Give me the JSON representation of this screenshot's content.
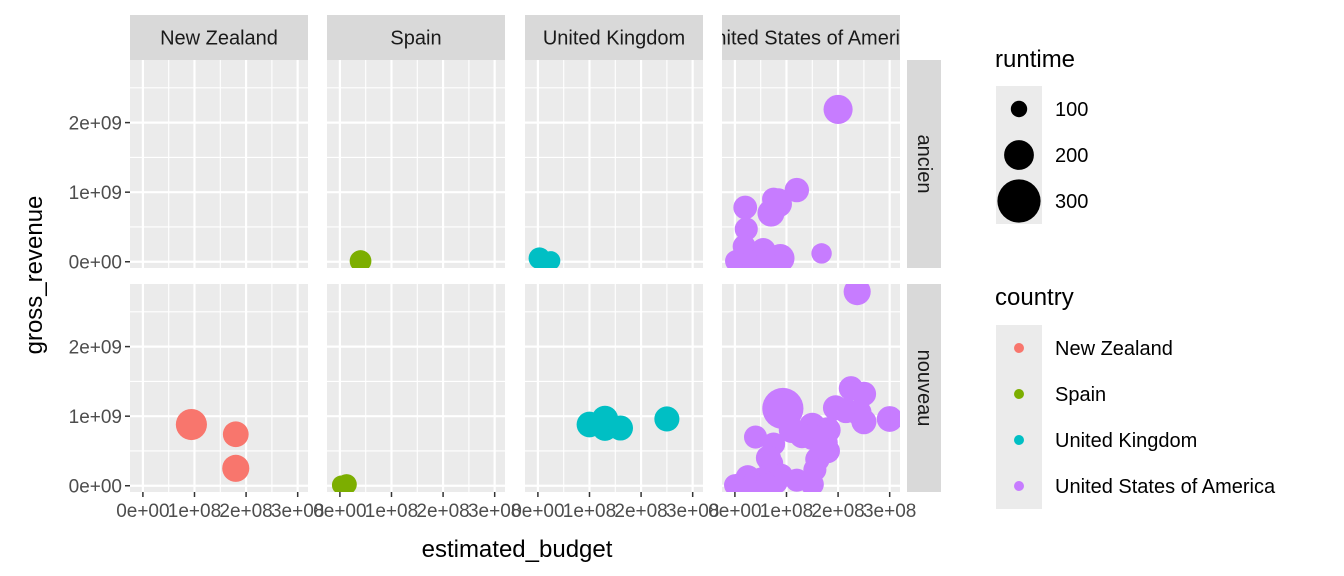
{
  "chart_data": {
    "type": "scatter",
    "facet_cols": [
      "New Zealand",
      "Spain",
      "United Kingdom",
      "United States of America"
    ],
    "facet_rows": [
      "ancien",
      "nouveau"
    ],
    "xlabel": "estimated_budget",
    "ylabel": "gross_revenue",
    "xlim": [
      -25000000.0,
      320000000.0
    ],
    "ylim": [
      -90000000.0,
      2900000000.0
    ],
    "x_ticks": [
      0,
      100000000,
      200000000,
      300000000
    ],
    "x_tick_labels": [
      "0e+00",
      "1e+08",
      "2e+08",
      "3e+08"
    ],
    "y_ticks": [
      0,
      1000000000,
      2000000000
    ],
    "y_tick_labels": [
      "0e+00",
      "1e+09",
      "2e+09"
    ],
    "grid": true,
    "legend_position": "right",
    "legend_size": {
      "title": "runtime",
      "entries": [
        {
          "label": "100",
          "value": 100
        },
        {
          "label": "200",
          "value": 200
        },
        {
          "label": "300",
          "value": 300
        }
      ]
    },
    "legend_color": {
      "title": "country",
      "entries": [
        {
          "label": "New Zealand",
          "color": "#F8766D"
        },
        {
          "label": "Spain",
          "color": "#7CAE00"
        },
        {
          "label": "United Kingdom",
          "color": "#00BFC4"
        },
        {
          "label": "United States of America",
          "color": "#C77CFF"
        }
      ]
    },
    "points": [
      {
        "country": "Spain",
        "era": "ancien",
        "x": 40000000,
        "y": 10000000,
        "runtime": 140
      },
      {
        "country": "United Kingdom",
        "era": "ancien",
        "x": 3000000,
        "y": 50000000,
        "runtime": 140
      },
      {
        "country": "United Kingdom",
        "era": "ancien",
        "x": 25000000,
        "y": 15000000,
        "runtime": 120
      },
      {
        "country": "United States of America",
        "era": "ancien",
        "x": 200000000,
        "y": 2190000000,
        "runtime": 195
      },
      {
        "country": "United States of America",
        "era": "ancien",
        "x": 120000000,
        "y": 1030000000,
        "runtime": 160
      },
      {
        "country": "United States of America",
        "era": "ancien",
        "x": 75000000,
        "y": 900000000,
        "runtime": 150
      },
      {
        "country": "United States of America",
        "era": "ancien",
        "x": 85000000,
        "y": 900000000,
        "runtime": 140
      },
      {
        "country": "United States of America",
        "era": "ancien",
        "x": 85000000,
        "y": 830000000,
        "runtime": 175
      },
      {
        "country": "United States of America",
        "era": "ancien",
        "x": 70000000,
        "y": 700000000,
        "runtime": 180
      },
      {
        "country": "United States of America",
        "era": "ancien",
        "x": 20000000,
        "y": 780000000,
        "runtime": 155
      },
      {
        "country": "United States of America",
        "era": "ancien",
        "x": 22000000,
        "y": 470000000,
        "runtime": 150
      },
      {
        "country": "United States of America",
        "era": "ancien",
        "x": 18000000,
        "y": 220000000,
        "runtime": 150
      },
      {
        "country": "United States of America",
        "era": "ancien",
        "x": 55000000,
        "y": 160000000,
        "runtime": 165
      },
      {
        "country": "United States of America",
        "era": "ancien",
        "x": 168000000,
        "y": 120000000,
        "runtime": 130
      },
      {
        "country": "United States of America",
        "era": "ancien",
        "x": 88000000,
        "y": 50000000,
        "runtime": 190
      },
      {
        "country": "United States of America",
        "era": "ancien",
        "x": 2000000,
        "y": 10000000,
        "runtime": 140
      },
      {
        "country": "United States of America",
        "era": "ancien",
        "x": 8000000,
        "y": 20000000,
        "runtime": 150
      },
      {
        "country": "United States of America",
        "era": "ancien",
        "x": 18000000,
        "y": 40000000,
        "runtime": 150
      },
      {
        "country": "United States of America",
        "era": "ancien",
        "x": 35000000,
        "y": 20000000,
        "runtime": 150
      },
      {
        "country": "United States of America",
        "era": "ancien",
        "x": 48000000,
        "y": 30000000,
        "runtime": 150
      },
      {
        "country": "United States of America",
        "era": "ancien",
        "x": 60000000,
        "y": 15000000,
        "runtime": 140
      },
      {
        "country": "New Zealand",
        "era": "nouveau",
        "x": 94000000,
        "y": 880000000,
        "runtime": 210
      },
      {
        "country": "New Zealand",
        "era": "nouveau",
        "x": 180000000,
        "y": 740000000,
        "runtime": 170
      },
      {
        "country": "New Zealand",
        "era": "nouveau",
        "x": 180000000,
        "y": 250000000,
        "runtime": 180
      },
      {
        "country": "Spain",
        "era": "nouveau",
        "x": 3000000,
        "y": 10000000,
        "runtime": 120
      },
      {
        "country": "Spain",
        "era": "nouveau",
        "x": 13000000,
        "y": 20000000,
        "runtime": 130
      },
      {
        "country": "United Kingdom",
        "era": "nouveau",
        "x": 100000000,
        "y": 880000000,
        "runtime": 170
      },
      {
        "country": "United Kingdom",
        "era": "nouveau",
        "x": 130000000,
        "y": 960000000,
        "runtime": 175
      },
      {
        "country": "United Kingdom",
        "era": "nouveau",
        "x": 130000000,
        "y": 830000000,
        "runtime": 170
      },
      {
        "country": "United Kingdom",
        "era": "nouveau",
        "x": 160000000,
        "y": 830000000,
        "runtime": 165
      },
      {
        "country": "United Kingdom",
        "era": "nouveau",
        "x": 250000000,
        "y": 960000000,
        "runtime": 165
      },
      {
        "country": "United States of America",
        "era": "nouveau",
        "x": 237000000,
        "y": 2790000000,
        "runtime": 180
      },
      {
        "country": "United States of America",
        "era": "nouveau",
        "x": 225000000,
        "y": 1400000000,
        "runtime": 160
      },
      {
        "country": "United States of America",
        "era": "nouveau",
        "x": 250000000,
        "y": 1320000000,
        "runtime": 160
      },
      {
        "country": "United States of America",
        "era": "nouveau",
        "x": 195000000,
        "y": 1120000000,
        "runtime": 165
      },
      {
        "country": "United States of America",
        "era": "nouveau",
        "x": 215000000,
        "y": 1080000000,
        "runtime": 165
      },
      {
        "country": "United States of America",
        "era": "nouveau",
        "x": 240000000,
        "y": 1050000000,
        "runtime": 170
      },
      {
        "country": "United States of America",
        "era": "nouveau",
        "x": 300000000,
        "y": 960000000,
        "runtime": 170
      },
      {
        "country": "United States of America",
        "era": "nouveau",
        "x": 250000000,
        "y": 920000000,
        "runtime": 165
      },
      {
        "country": "United States of America",
        "era": "nouveau",
        "x": 93000000,
        "y": 1110000000,
        "runtime": 285
      },
      {
        "country": "United States of America",
        "era": "nouveau",
        "x": 110000000,
        "y": 800000000,
        "runtime": 170
      },
      {
        "country": "United States of America",
        "era": "nouveau",
        "x": 150000000,
        "y": 860000000,
        "runtime": 175
      },
      {
        "country": "United States of America",
        "era": "nouveau",
        "x": 180000000,
        "y": 800000000,
        "runtime": 170
      },
      {
        "country": "United States of America",
        "era": "nouveau",
        "x": 130000000,
        "y": 720000000,
        "runtime": 165
      },
      {
        "country": "United States of America",
        "era": "nouveau",
        "x": 150000000,
        "y": 700000000,
        "runtime": 170
      },
      {
        "country": "United States of America",
        "era": "nouveau",
        "x": 175000000,
        "y": 620000000,
        "runtime": 165
      },
      {
        "country": "United States of America",
        "era": "nouveau",
        "x": 180000000,
        "y": 500000000,
        "runtime": 160
      },
      {
        "country": "United States of America",
        "era": "nouveau",
        "x": 40000000,
        "y": 700000000,
        "runtime": 150
      },
      {
        "country": "United States of America",
        "era": "nouveau",
        "x": 75000000,
        "y": 600000000,
        "runtime": 150
      },
      {
        "country": "United States of America",
        "era": "nouveau",
        "x": 65000000,
        "y": 400000000,
        "runtime": 165
      },
      {
        "country": "United States of America",
        "era": "nouveau",
        "x": 70000000,
        "y": 320000000,
        "runtime": 160
      },
      {
        "country": "United States of America",
        "era": "nouveau",
        "x": 160000000,
        "y": 380000000,
        "runtime": 160
      },
      {
        "country": "United States of America",
        "era": "nouveau",
        "x": 155000000,
        "y": 230000000,
        "runtime": 150
      },
      {
        "country": "United States of America",
        "era": "nouveau",
        "x": 70000000,
        "y": 200000000,
        "runtime": 150
      },
      {
        "country": "United States of America",
        "era": "nouveau",
        "x": 90000000,
        "y": 150000000,
        "runtime": 150
      },
      {
        "country": "United States of America",
        "era": "nouveau",
        "x": 25000000,
        "y": 120000000,
        "runtime": 160
      },
      {
        "country": "United States of America",
        "era": "nouveau",
        "x": 50000000,
        "y": 80000000,
        "runtime": 165
      },
      {
        "country": "United States of America",
        "era": "nouveau",
        "x": 80000000,
        "y": 50000000,
        "runtime": 150
      },
      {
        "country": "United States of America",
        "era": "nouveau",
        "x": 120000000,
        "y": 80000000,
        "runtime": 150
      },
      {
        "country": "United States of America",
        "era": "nouveau",
        "x": 150000000,
        "y": 20000000,
        "runtime": 150
      },
      {
        "country": "United States of America",
        "era": "nouveau",
        "x": 0,
        "y": 10000000,
        "runtime": 140
      },
      {
        "country": "United States of America",
        "era": "nouveau",
        "x": 10000000,
        "y": 15000000,
        "runtime": 150
      },
      {
        "country": "United States of America",
        "era": "nouveau",
        "x": 35000000,
        "y": 15000000,
        "runtime": 150
      },
      {
        "country": "United States of America",
        "era": "nouveau",
        "x": 55000000,
        "y": 20000000,
        "runtime": 150
      },
      {
        "country": "United States of America",
        "era": "nouveau",
        "x": 62000000,
        "y": 10000000,
        "runtime": 150
      }
    ]
  }
}
